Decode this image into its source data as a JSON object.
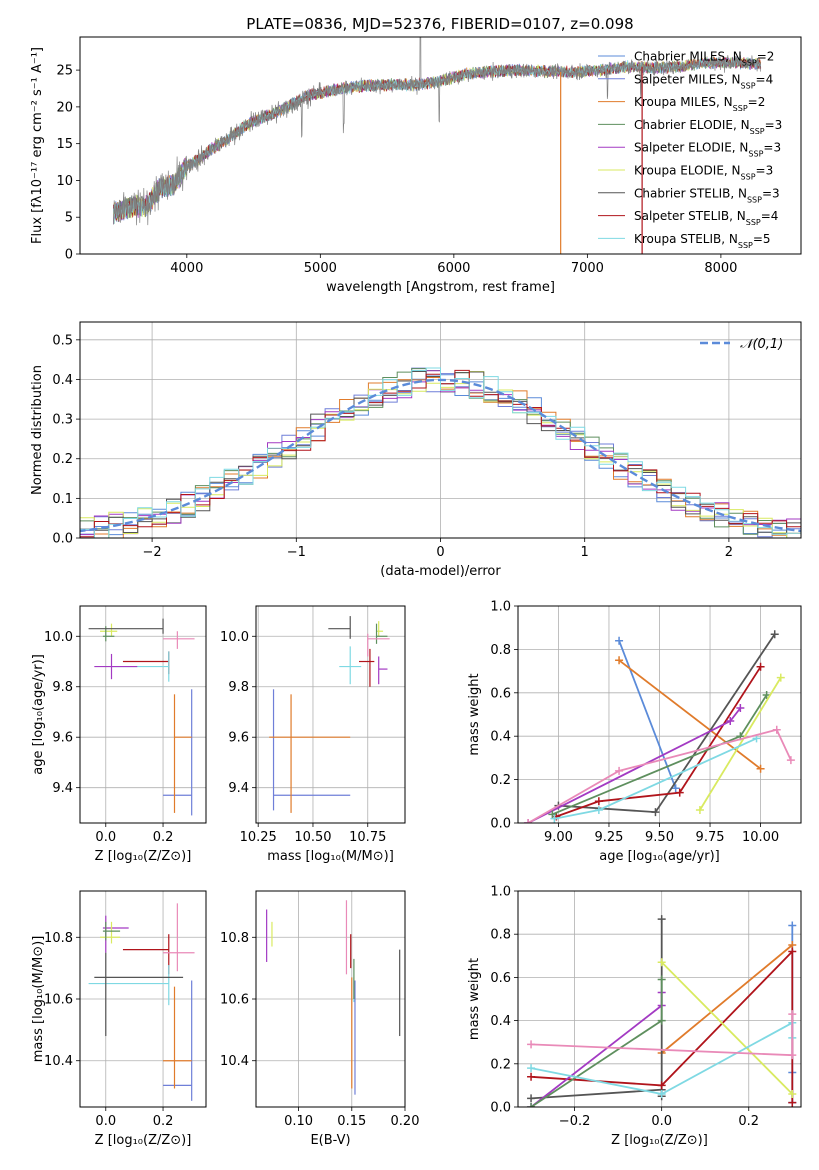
{
  "figure": {
    "title": "PLATE=0836, MJD=52376, FIBERID=0107, z=0.098"
  },
  "models": [
    {
      "name": "Chabrier MILES",
      "nssp": "2",
      "color": "#5b8bd9"
    },
    {
      "name": "Salpeter MILES",
      "nssp": "4",
      "color": "#6f7fd8"
    },
    {
      "name": "Kroupa MILES",
      "nssp": "2",
      "color": "#e07b2b"
    },
    {
      "name": "Chabrier ELODIE",
      "nssp": "3",
      "color": "#5e8f5e"
    },
    {
      "name": "Salpeter ELODIE",
      "nssp": "3",
      "color": "#a33ac3"
    },
    {
      "name": "Kroupa ELODIE",
      "nssp": "3",
      "color": "#d9ea60"
    },
    {
      "name": "Chabrier STELIB",
      "nssp": "3",
      "color": "#555555"
    },
    {
      "name": "Salpeter STELIB",
      "nssp": "4",
      "color": "#b0141b"
    },
    {
      "name": "Kroupa STELIB",
      "nssp": "5",
      "color": "#7fd9e3"
    }
  ],
  "legend_nssp_label": "N",
  "legend_nssp_sub": "SSP",
  "chart_data": [
    {
      "id": "spectrum",
      "type": "line",
      "xlabel": "wavelength [Angstrom, rest frame]",
      "ylabel": "Flux [fλ10⁻¹⁷ erg cm⁻² s⁻¹ A⁻¹]",
      "xlim": [
        3200,
        8600
      ],
      "ylim": [
        0,
        29.5
      ],
      "xticks": [
        4000,
        5000,
        6000,
        7000,
        8000
      ],
      "yticks": [
        0,
        5,
        10,
        15,
        20,
        25
      ],
      "data_color": "#808080",
      "continuum": {
        "x": [
          3450,
          3600,
          3700,
          3800,
          3900,
          4000,
          4100,
          4200,
          4300,
          4400,
          4500,
          4700,
          4900,
          5100,
          5300,
          5500,
          5700,
          5900,
          6100,
          6300,
          6500,
          6700,
          6900,
          7100,
          7300,
          7500,
          7700,
          7900,
          8100,
          8300
        ],
        "y": [
          5.5,
          6.5,
          6.5,
          9.0,
          9.3,
          12.0,
          13.0,
          14.5,
          15.5,
          17.0,
          18.0,
          19.5,
          21.5,
          22.3,
          22.8,
          23.0,
          23.0,
          23.5,
          24.5,
          24.8,
          25.0,
          24.8,
          24.7,
          25.0,
          25.5,
          25.3,
          25.5,
          26.0,
          26.0,
          25.8
        ]
      },
      "legend": "top-right",
      "grid": false
    },
    {
      "id": "residuals",
      "type": "line",
      "xlabel": "(data-model)/error",
      "ylabel": "Normed distribution",
      "xlim": [
        -2.5,
        2.5
      ],
      "ylim": [
        0,
        0.545
      ],
      "xticks": [
        -2,
        -1,
        0,
        1,
        2
      ],
      "yticks": [
        0.0,
        0.1,
        0.2,
        0.3,
        0.4,
        0.5
      ],
      "reference": {
        "name": "𝒩(0,1)",
        "color": "#5b8bd9"
      },
      "bin_width": 0.1,
      "grid": true,
      "legend": "top-right"
    },
    {
      "id": "age_vs_Z",
      "type": "scatter",
      "xlabel": "Z [log₁₀(Z/Z⊙)]",
      "ylabel": "age [log₁₀(age/yr)]",
      "xlim": [
        -0.09,
        0.35
      ],
      "ylim": [
        9.26,
        10.12
      ],
      "xticks": [
        0.0,
        0.2
      ],
      "yticks": [
        9.4,
        9.6,
        9.8,
        10.0
      ],
      "points": [
        {
          "x": 0.3,
          "y": 9.37,
          "xerr": [
            0.1,
            0.0
          ],
          "yerr": [
            0.08,
            0.42
          ],
          "color": "#6f7fd8"
        },
        {
          "x": 0.24,
          "y": 9.6,
          "xerr": [
            0.0,
            0.06
          ],
          "yerr": [
            0.3,
            0.17
          ],
          "color": "#e07b2b"
        },
        {
          "x": 0.22,
          "y": 9.9,
          "xerr": [
            0.16,
            0.0
          ],
          "yerr": [
            0.05,
            0.04
          ],
          "color": "#b0141b"
        },
        {
          "x": 0.25,
          "y": 9.99,
          "xerr": [
            0.05,
            0.06
          ],
          "yerr": [
            0.04,
            0.03
          ],
          "color": "#e98ab8"
        },
        {
          "x": 0.22,
          "y": 9.88,
          "xerr": [
            0.2,
            0.0
          ],
          "yerr": [
            0.06,
            0.06
          ],
          "color": "#7fd9e3"
        },
        {
          "x": 0.02,
          "y": 9.88,
          "xerr": [
            0.06,
            0.09
          ],
          "yerr": [
            0.05,
            0.05
          ],
          "color": "#a33ac3"
        },
        {
          "x": 0.02,
          "y": 10.02,
          "xerr": [
            0.04,
            0.02
          ],
          "yerr": [
            0.02,
            0.03
          ],
          "color": "#d9ea60"
        },
        {
          "x": 0.0,
          "y": 10.0,
          "xerr": [
            0.01,
            0.03
          ],
          "yerr": [
            0.02,
            0.04
          ],
          "color": "#5e8f5e"
        },
        {
          "x": 0.2,
          "y": 10.03,
          "xerr": [
            0.26,
            0.0
          ],
          "yerr": [
            0.02,
            0.04
          ],
          "color": "#555555"
        }
      ],
      "grid": true
    },
    {
      "id": "age_vs_mass",
      "type": "scatter",
      "xlabel": "mass [log₁₀(M/M⊙)]",
      "ylabel": "",
      "xlim": [
        10.24,
        10.92
      ],
      "ylim": [
        9.26,
        10.12
      ],
      "xticks": [
        10.25,
        10.5,
        10.75
      ],
      "yticks": [
        9.4,
        9.6,
        9.8,
        10.0
      ],
      "points": [
        {
          "x": 10.32,
          "y": 9.37,
          "xerr": [
            0.0,
            0.35
          ],
          "yerr": [
            0.06,
            0.42
          ],
          "color": "#6f7fd8"
        },
        {
          "x": 10.4,
          "y": 9.6,
          "xerr": [
            0.1,
            0.27
          ],
          "yerr": [
            0.3,
            0.17
          ],
          "color": "#e07b2b"
        },
        {
          "x": 10.76,
          "y": 9.9,
          "xerr": [
            0.05,
            0.02
          ],
          "yerr": [
            0.1,
            0.05
          ],
          "color": "#b0141b"
        },
        {
          "x": 10.67,
          "y": 9.88,
          "xerr": [
            0.05,
            0.05
          ],
          "yerr": [
            0.07,
            0.08
          ],
          "color": "#7fd9e3"
        },
        {
          "x": 10.8,
          "y": 9.87,
          "xerr": [
            0.0,
            0.04
          ],
          "yerr": [
            0.06,
            0.05
          ],
          "color": "#a33ac3"
        },
        {
          "x": 10.8,
          "y": 10.02,
          "xerr": [
            0.01,
            0.02
          ],
          "yerr": [
            0.02,
            0.04
          ],
          "color": "#d9ea60"
        },
        {
          "x": 10.79,
          "y": 10.0,
          "xerr": [
            0.0,
            0.05
          ],
          "yerr": [
            0.03,
            0.05
          ],
          "color": "#5e8f5e"
        },
        {
          "x": 10.67,
          "y": 10.03,
          "xerr": [
            0.1,
            0.0
          ],
          "yerr": [
            0.04,
            0.05
          ],
          "color": "#555555"
        },
        {
          "x": 10.75,
          "y": 9.99,
          "xerr": [
            0.0,
            0.1
          ],
          "yerr": [
            0.07,
            0.02
          ],
          "color": "#e98ab8"
        }
      ],
      "grid": true
    },
    {
      "id": "weight_vs_age",
      "type": "line",
      "xlabel": "age [log₁₀(age/yr)]",
      "ylabel": "mass weight",
      "xlim": [
        8.8,
        10.2
      ],
      "ylim": [
        0,
        1.0
      ],
      "xticks": [
        9.0,
        9.25,
        9.5,
        9.75,
        10.0
      ],
      "yticks": [
        0.0,
        0.2,
        0.4,
        0.6,
        0.8,
        1.0
      ],
      "series": [
        {
          "color": "#5b8bd9",
          "x": [
            9.3,
            9.58
          ],
          "y": [
            0.84,
            0.16
          ]
        },
        {
          "color": "#e07b2b",
          "x": [
            9.3,
            10.0
          ],
          "y": [
            0.75,
            0.25
          ]
        },
        {
          "color": "#555555",
          "x": [
            9.0,
            9.48,
            10.07
          ],
          "y": [
            0.08,
            0.05,
            0.87
          ]
        },
        {
          "color": "#b0141b",
          "x": [
            8.99,
            9.2,
            9.6,
            10.0
          ],
          "y": [
            0.03,
            0.1,
            0.14,
            0.72
          ]
        },
        {
          "color": "#a33ac3",
          "x": [
            8.85,
            9.85,
            9.9
          ],
          "y": [
            0.0,
            0.47,
            0.53
          ]
        },
        {
          "color": "#5e8f5e",
          "x": [
            8.97,
            9.9,
            10.03
          ],
          "y": [
            0.04,
            0.4,
            0.59
          ]
        },
        {
          "color": "#d9ea60",
          "x": [
            9.7,
            10.1
          ],
          "y": [
            0.06,
            0.67
          ]
        },
        {
          "color": "#7fd9e3",
          "x": [
            8.98,
            9.2,
            9.98
          ],
          "y": [
            0.02,
            0.06,
            0.39
          ]
        },
        {
          "color": "#e98ab8",
          "x": [
            8.85,
            9.3,
            10.08,
            10.15
          ],
          "y": [
            0.0,
            0.24,
            0.43,
            0.29
          ]
        }
      ],
      "grid": true
    },
    {
      "id": "mass_vs_Z",
      "type": "scatter",
      "xlabel": "Z [log₁₀(Z/Z⊙)]",
      "ylabel": "mass [log₁₀(M/M⊙)]",
      "xlim": [
        -0.09,
        0.35
      ],
      "ylim": [
        10.25,
        10.95
      ],
      "xticks": [
        0.0,
        0.2
      ],
      "yticks": [
        10.4,
        10.6,
        10.8
      ],
      "points": [
        {
          "x": 0.3,
          "y": 10.32,
          "xerr": [
            0.1,
            0.0
          ],
          "yerr": [
            0.05,
            0.34
          ],
          "color": "#6f7fd8"
        },
        {
          "x": 0.24,
          "y": 10.4,
          "xerr": [
            0.04,
            0.06
          ],
          "yerr": [
            0.09,
            0.24
          ],
          "color": "#e07b2b"
        },
        {
          "x": 0.22,
          "y": 10.76,
          "xerr": [
            0.16,
            0.0
          ],
          "yerr": [
            0.08,
            0.05
          ],
          "color": "#b0141b"
        },
        {
          "x": 0.25,
          "y": 10.75,
          "xerr": [
            0.05,
            0.06
          ],
          "yerr": [
            0.06,
            0.16
          ],
          "color": "#e98ab8"
        },
        {
          "x": 0.22,
          "y": 10.65,
          "xerr": [
            0.28,
            0.0
          ],
          "yerr": [
            0.07,
            0.06
          ],
          "color": "#7fd9e3"
        },
        {
          "x": 0.0,
          "y": 10.83,
          "xerr": [
            0.01,
            0.08
          ],
          "yerr": [
            0.08,
            0.04
          ],
          "color": "#a33ac3"
        },
        {
          "x": 0.02,
          "y": 10.8,
          "xerr": [
            0.04,
            0.03
          ],
          "yerr": [
            0.02,
            0.05
          ],
          "color": "#d9ea60"
        },
        {
          "x": 0.0,
          "y": 10.82,
          "xerr": [
            0.01,
            0.05
          ],
          "yerr": [
            0.03,
            0.03
          ],
          "color": "#5e8f5e"
        },
        {
          "x": 0.0,
          "y": 10.67,
          "xerr": [
            0.04,
            0.27
          ],
          "yerr": [
            0.19,
            0.08
          ],
          "color": "#555555"
        }
      ],
      "grid": true
    },
    {
      "id": "mass_vs_ebv",
      "type": "scatter",
      "xlabel": "E(B-V)",
      "ylabel": "",
      "xlim": [
        0.06,
        0.2
      ],
      "ylim": [
        10.25,
        10.95
      ],
      "xticks": [
        0.1,
        0.15,
        0.2
      ],
      "yticks": [
        10.4,
        10.6,
        10.8
      ],
      "points": [
        {
          "x": 0.07,
          "y": 10.82,
          "xerr": [
            0,
            0
          ],
          "yerr": [
            0.1,
            0.07
          ],
          "color": "#a33ac3"
        },
        {
          "x": 0.075,
          "y": 10.8,
          "xerr": [
            0,
            0
          ],
          "yerr": [
            0.03,
            0.05
          ],
          "color": "#d9ea60"
        },
        {
          "x": 0.145,
          "y": 10.8,
          "xerr": [
            0,
            0
          ],
          "yerr": [
            0.12,
            0.12
          ],
          "color": "#e98ab8"
        },
        {
          "x": 0.149,
          "y": 10.76,
          "xerr": [
            0,
            0
          ],
          "yerr": [
            0.06,
            0.05
          ],
          "color": "#b0141b"
        },
        {
          "x": 0.15,
          "y": 10.4,
          "xerr": [
            0,
            0
          ],
          "yerr": [
            0.09,
            0.27
          ],
          "color": "#e07b2b"
        },
        {
          "x": 0.152,
          "y": 10.65,
          "xerr": [
            0,
            0
          ],
          "yerr": [
            0.06,
            0.02
          ],
          "color": "#7fd9e3"
        },
        {
          "x": 0.153,
          "y": 10.5,
          "xerr": [
            0,
            0
          ],
          "yerr": [
            0.21,
            0.16
          ],
          "color": "#6f7fd8"
        },
        {
          "x": 0.152,
          "y": 10.67,
          "xerr": [
            0,
            0
          ],
          "yerr": [
            0.07,
            0.06
          ],
          "color": "#5e8f5e"
        },
        {
          "x": 0.195,
          "y": 10.62,
          "xerr": [
            0,
            0
          ],
          "yerr": [
            0.14,
            0.14
          ],
          "color": "#555555"
        }
      ],
      "grid": true
    },
    {
      "id": "weight_vs_Z",
      "type": "line",
      "xlabel": "Z [log₁₀(Z/Z⊙)]",
      "ylabel": "mass weight",
      "xlim": [
        -0.33,
        0.32
      ],
      "ylim": [
        0,
        1.0
      ],
      "xticks": [
        -0.2,
        0.0,
        0.2
      ],
      "yticks": [
        0.0,
        0.2,
        0.4,
        0.6,
        0.8,
        1.0
      ],
      "series": [
        {
          "color": "#5b8bd9",
          "x": [
            0.3,
            0.3,
            0.3
          ],
          "y": [
            0.84,
            0.16,
            0.02
          ]
        },
        {
          "color": "#e07b2b",
          "x": [
            0.0,
            0.3
          ],
          "y": [
            0.25,
            0.75
          ]
        },
        {
          "color": "#555555",
          "x": [
            -0.3,
            0.0,
            0.0,
            0.0
          ],
          "y": [
            0.04,
            0.08,
            0.87,
            0.05
          ]
        },
        {
          "color": "#b0141b",
          "x": [
            -0.3,
            0.0,
            0.3,
            0.3
          ],
          "y": [
            0.14,
            0.1,
            0.72,
            0.02
          ]
        },
        {
          "color": "#a33ac3",
          "x": [
            -0.3,
            0.0,
            0.0
          ],
          "y": [
            0.0,
            0.47,
            0.53
          ]
        },
        {
          "color": "#5e8f5e",
          "x": [
            -0.3,
            0.0,
            0.0
          ],
          "y": [
            0.0,
            0.4,
            0.59
          ]
        },
        {
          "color": "#d9ea60",
          "x": [
            0.0,
            0.3
          ],
          "y": [
            0.67,
            0.06
          ]
        },
        {
          "color": "#7fd9e3",
          "x": [
            -0.3,
            0.0,
            0.3,
            0.3
          ],
          "y": [
            0.18,
            0.06,
            0.39,
            0.32
          ]
        },
        {
          "color": "#e98ab8",
          "x": [
            -0.3,
            0.3,
            0.3
          ],
          "y": [
            0.29,
            0.24,
            0.43
          ]
        }
      ],
      "grid": true
    }
  ]
}
